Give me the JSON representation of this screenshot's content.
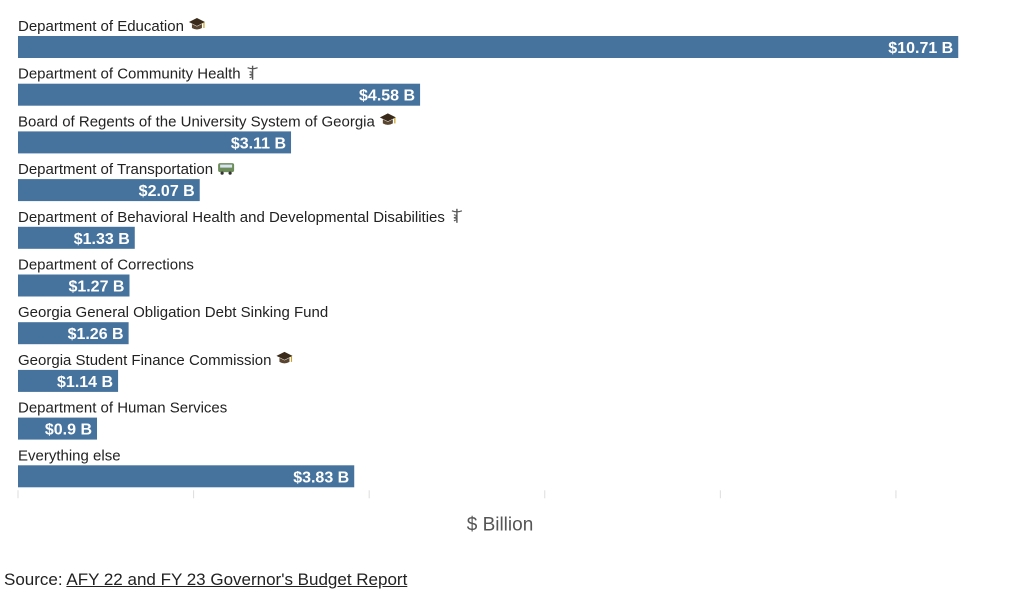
{
  "chart_data": {
    "type": "bar",
    "orientation": "horizontal",
    "categories": [
      "Department of Education",
      "Department of Community Health",
      "Board of Regents of the University System of Georgia",
      "Department of Transportation",
      "Department of Behavioral Health and Developmental Disabilities",
      "Department of Corrections",
      "Georgia General Obligation Debt Sinking Fund",
      "Georgia Student Finance Commission",
      "Department of Human Services",
      "Everything else"
    ],
    "icons": [
      "graduation-cap-icon",
      "caduceus-icon",
      "graduation-cap-icon",
      "bus-icon",
      "caduceus-icon",
      "",
      "",
      "graduation-cap-icon",
      "",
      ""
    ],
    "values": [
      10.71,
      4.58,
      3.11,
      2.07,
      1.33,
      1.27,
      1.26,
      1.14,
      0.9,
      3.83
    ],
    "value_labels": [
      "$10.71 B",
      "$4.58 B",
      "$3.11 B",
      "$2.07 B",
      "$1.33 B",
      "$1.27 B",
      "$1.26 B",
      "$1.14 B",
      "$0.9 B",
      "$3.83 B"
    ],
    "xlabel": "$ Billion",
    "xlim": [
      0,
      12
    ],
    "bar_color": "#46739d",
    "grid": false
  },
  "source": {
    "prefix": "Source: ",
    "link_text": "AFY 22 and FY 23 Governor's Budget Report"
  }
}
